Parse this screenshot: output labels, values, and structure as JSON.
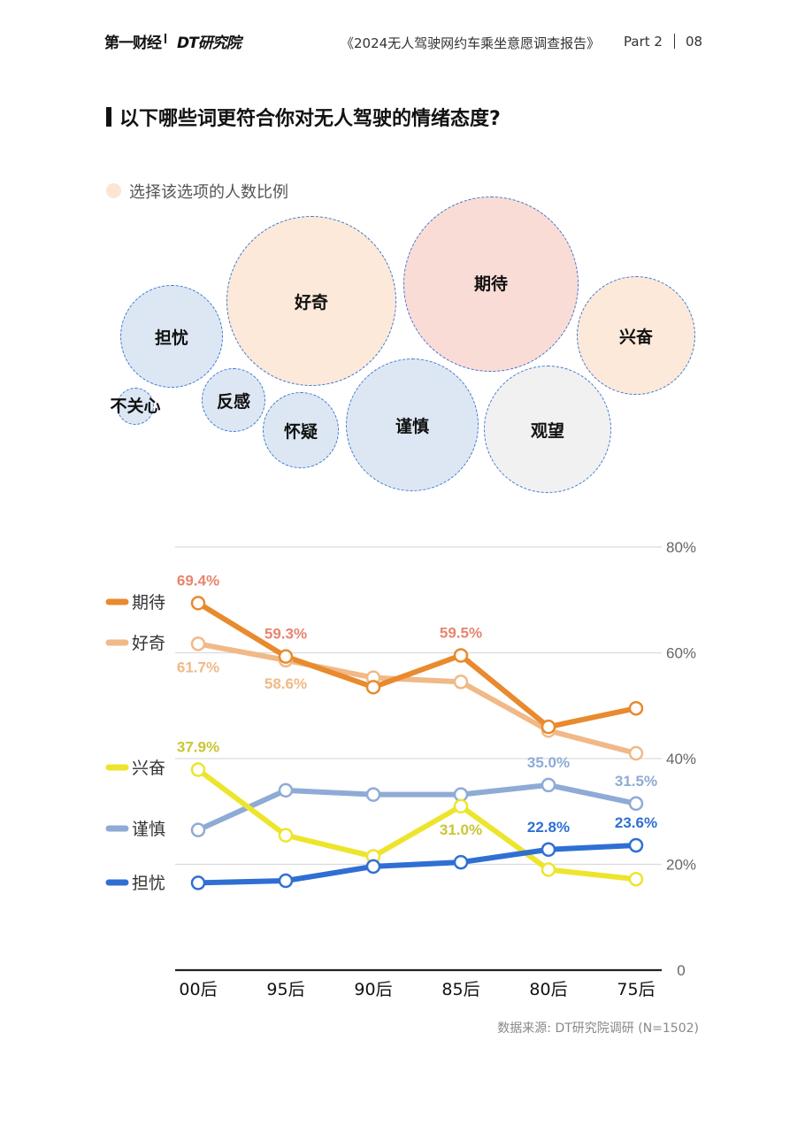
{
  "header": {
    "logo_primary": "第一财经",
    "logo_secondary": "DT研究院",
    "report_title": "《2024无人驾驶网约车乘坐意愿调查报告》",
    "part": "Part 2",
    "page": "08"
  },
  "question": "以下哪些词更符合你对无人驾驶的情绪态度?",
  "bubble_legend": "选择该选项的人数比例",
  "bubbles": [
    {
      "label": "担忧",
      "color": "#dde7f3"
    },
    {
      "label": "好奇",
      "color": "#fce9d9"
    },
    {
      "label": "期待",
      "color": "#fadcd7"
    },
    {
      "label": "兴奋",
      "color": "#fce9d9"
    },
    {
      "label": "不关心",
      "color": "#dde7f3"
    },
    {
      "label": "反感",
      "color": "#dde7f3"
    },
    {
      "label": "怀疑",
      "color": "#dde7f3"
    },
    {
      "label": "谨慎",
      "color": "#dde7f3"
    },
    {
      "label": "观望",
      "color": "#f1f1f1"
    }
  ],
  "chart_data": {
    "type": "line",
    "categories": [
      "00后",
      "95后",
      "90后",
      "85后",
      "80后",
      "75后"
    ],
    "ylim": [
      0,
      80
    ],
    "yticks": [
      "0",
      "20%",
      "40%",
      "60%",
      "80%"
    ],
    "grid": true,
    "legend_position": "left",
    "series": [
      {
        "name": "期待",
        "color": "#e88a2d",
        "values": [
          69.4,
          59.3,
          53.5,
          59.5,
          46.0,
          49.5
        ],
        "labels": [
          {
            "i": 0,
            "text": "69.4%",
            "pos": "above",
            "color": "#e8846f"
          },
          {
            "i": 1,
            "text": "59.3%",
            "pos": "above",
            "color": "#e8846f"
          },
          {
            "i": 3,
            "text": "59.5%",
            "pos": "above",
            "color": "#e8846f"
          }
        ]
      },
      {
        "name": "好奇",
        "color": "#f0b987",
        "values": [
          61.7,
          58.6,
          55.3,
          54.5,
          45.3,
          41.0
        ],
        "labels": [
          {
            "i": 0,
            "text": "61.7%",
            "pos": "below",
            "color": "#f0b987"
          },
          {
            "i": 1,
            "text": "58.6%",
            "pos": "below",
            "color": "#f0b987"
          }
        ]
      },
      {
        "name": "兴奋",
        "color": "#ede52c",
        "values": [
          37.9,
          25.5,
          21.5,
          31.0,
          19.0,
          17.2
        ],
        "labels": [
          {
            "i": 0,
            "text": "37.9%",
            "pos": "above",
            "color": "#c9c632"
          },
          {
            "i": 3,
            "text": "31.0%",
            "pos": "below",
            "color": "#c9c632"
          }
        ]
      },
      {
        "name": "谨慎",
        "color": "#8eabd6",
        "values": [
          26.5,
          34.0,
          33.2,
          33.2,
          35.0,
          31.5
        ],
        "labels": [
          {
            "i": 4,
            "text": "35.0%",
            "pos": "above",
            "color": "#8eabd6"
          },
          {
            "i": 5,
            "text": "31.5%",
            "pos": "above",
            "color": "#8eabd6"
          }
        ]
      },
      {
        "name": "担忧",
        "color": "#2f6fd3",
        "values": [
          16.5,
          16.9,
          19.6,
          20.4,
          22.8,
          23.6
        ],
        "labels": [
          {
            "i": 4,
            "text": "22.8%",
            "pos": "above",
            "color": "#2f6fd3"
          },
          {
            "i": 5,
            "text": "23.6%",
            "pos": "above",
            "color": "#2f6fd3"
          }
        ]
      }
    ]
  },
  "source": "数据来源: DT研究院调研 (N=1502)"
}
